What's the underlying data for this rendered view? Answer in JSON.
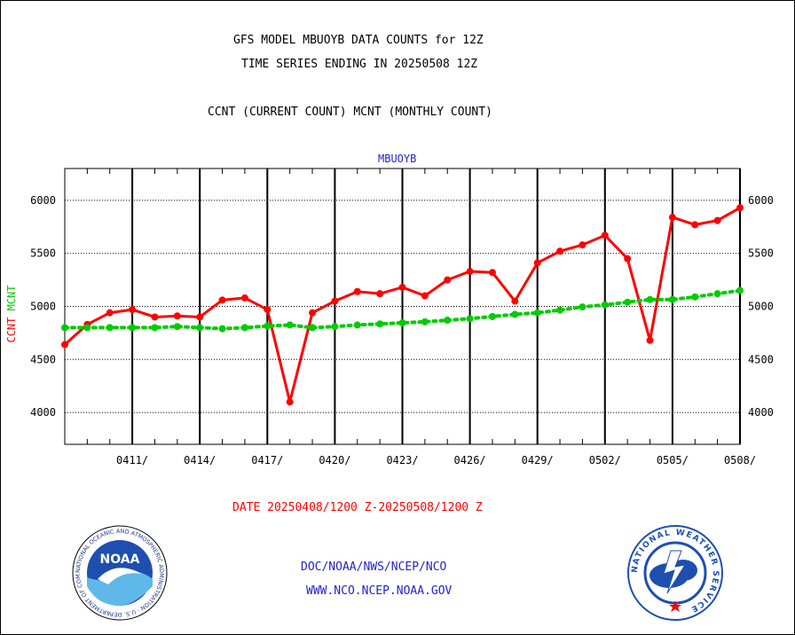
{
  "header": {
    "title_line1": "GFS MODEL MBUOYB DATA COUNTS for 12Z",
    "title_line2": "TIME SERIES ENDING IN 20250508 12Z",
    "subtitle": "CCNT (CURRENT COUNT) MCNT (MONTHLY COUNT)"
  },
  "footer": {
    "date_range": "DATE 20250408/1200 Z-20250508/1200 Z",
    "org_path": "DOC/NOAA/NWS/NCEP/NCO",
    "website": "WWW.NCO.NCEP.NOAA.GOV"
  },
  "logos": {
    "left_text": "NOAA",
    "left_ring_text": "NATIONAL OCEANIC AND ATMOSPHERIC ADMINISTRATION · U.S. DEPARTMENT OF COMMERCE",
    "right_ring_text": "NATIONAL WEATHER SERVICE"
  },
  "colors": {
    "ccnt": "#ff0000",
    "mcnt": "#00cc00",
    "plot_label": "#2222cc",
    "frame": "#000000"
  },
  "chart_data": {
    "type": "line",
    "title": "MBUOYB",
    "ylabel_parts": [
      "CCNT",
      "MCNT"
    ],
    "ylim": [
      3700,
      6300
    ],
    "yticks": [
      4000,
      4500,
      5000,
      5500,
      6000
    ],
    "ytick_labels": [
      "4000",
      "4500",
      "5000",
      "5500",
      "6000"
    ],
    "x_start_day": 0,
    "x_end_day": 30,
    "xticks": [
      3,
      6,
      9,
      12,
      15,
      18,
      21,
      24,
      27,
      30
    ],
    "xtick_labels": [
      "0411/",
      "0414/",
      "0417/",
      "0420/",
      "0423/",
      "0426/",
      "0429/",
      "0502/",
      "0505/",
      "0508/"
    ],
    "grid": true,
    "series": [
      {
        "name": "CCNT",
        "color": "#ff0000",
        "values": [
          4640,
          4830,
          4940,
          4970,
          4900,
          4910,
          4900,
          5060,
          5080,
          4970,
          4100,
          4940,
          5050,
          5140,
          5120,
          5180,
          5100,
          5250,
          5330,
          5320,
          5050,
          5410,
          5520,
          5580,
          5670,
          5450,
          4680,
          5840,
          5770,
          5810,
          5930
        ]
      },
      {
        "name": "MCNT",
        "color": "#00cc00",
        "values": [
          4800,
          4800,
          4800,
          4800,
          4800,
          4810,
          4800,
          4790,
          4800,
          4815,
          4825,
          4800,
          4810,
          4825,
          4835,
          4845,
          4855,
          4870,
          4885,
          4905,
          4925,
          4940,
          4965,
          4995,
          5015,
          5040,
          5065,
          5065,
          5090,
          5120,
          5150
        ]
      }
    ]
  }
}
